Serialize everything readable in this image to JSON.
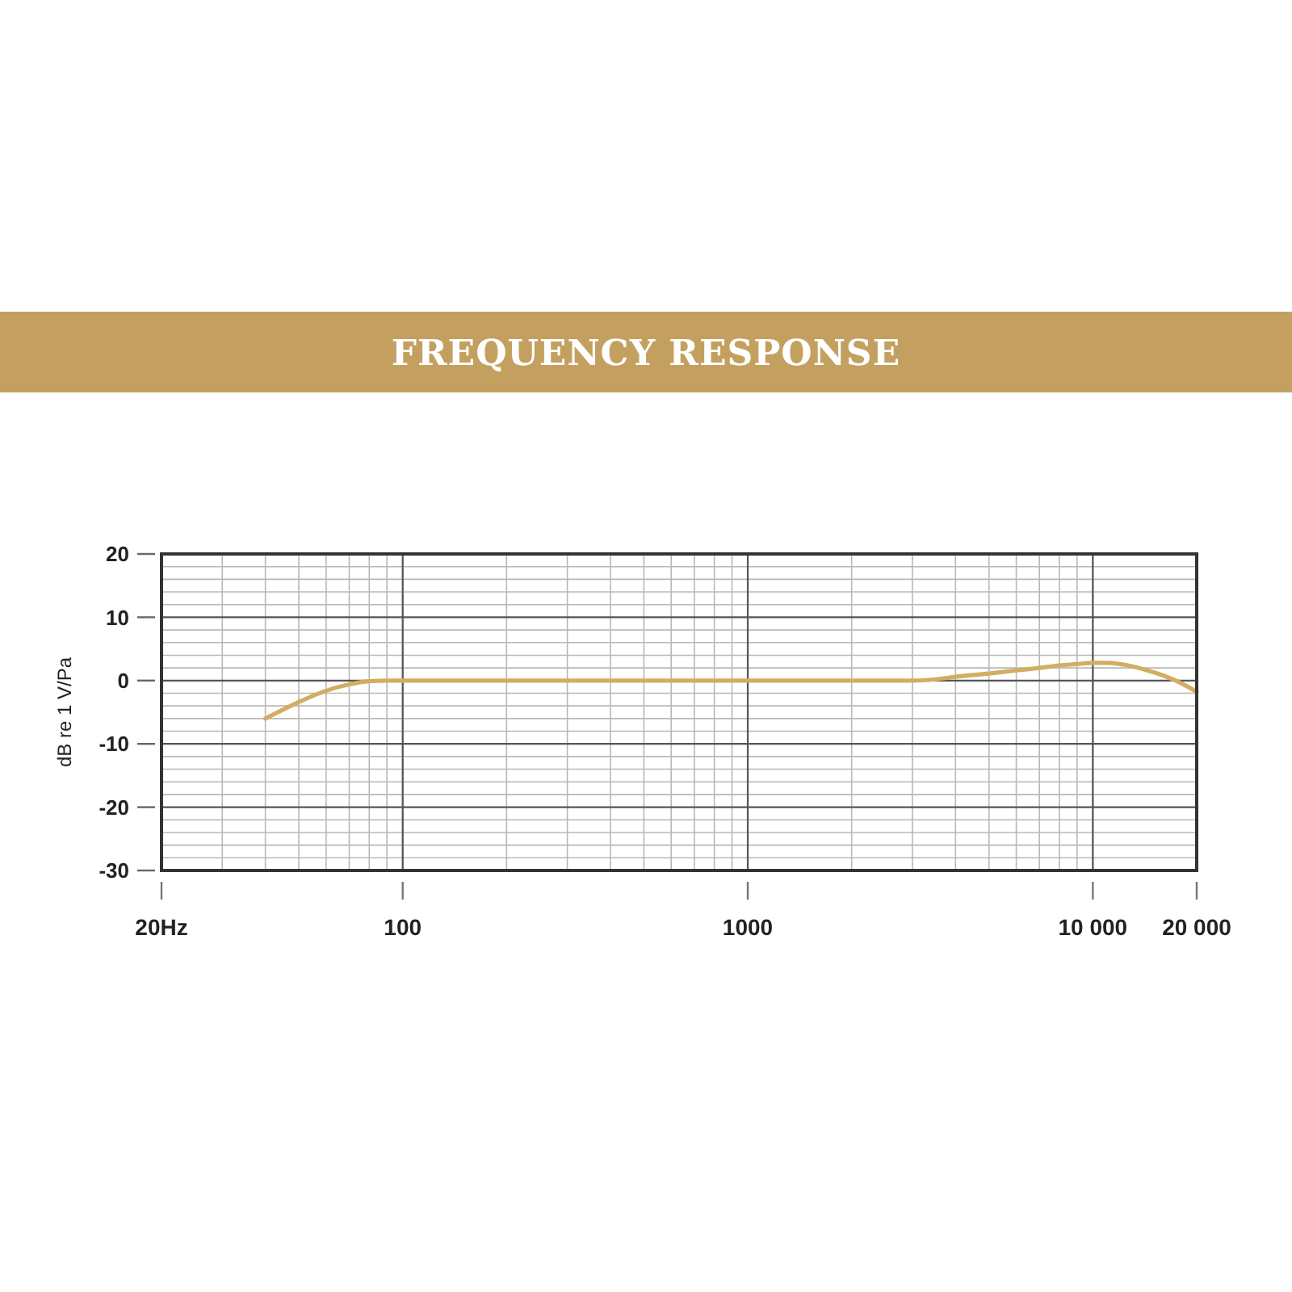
{
  "chart_data": {
    "type": "line",
    "title": "FREQUENCY RESPONSE",
    "ylabel": "dB re 1 V/Pa",
    "series": [
      {
        "color": "#d2ad62",
        "x": [
          40,
          45,
          50,
          55,
          60,
          70,
          80,
          90,
          100,
          200,
          500,
          1000,
          2000,
          3000,
          3500,
          4000,
          5000,
          6000,
          7000,
          8000,
          9000,
          10000,
          11000,
          12000,
          14000,
          16000,
          18000,
          20000
        ],
        "values": [
          -6,
          -4.6,
          -3.4,
          -2.4,
          -1.6,
          -0.6,
          -0.1,
          0,
          0,
          0,
          0,
          0,
          0,
          0,
          0.2,
          0.6,
          1.1,
          1.6,
          2,
          2.4,
          2.6,
          2.8,
          2.8,
          2.6,
          1.8,
          0.8,
          -0.4,
          -1.8
        ]
      }
    ],
    "log": "x",
    "xlim": [
      20,
      20000
    ],
    "ylim": [
      -30,
      20
    ],
    "xticks": [
      {
        "value": 20,
        "label": "20Hz"
      },
      100,
      1000,
      {
        "value": 10000,
        "label": "10 000"
      },
      {
        "value": 20000,
        "label": "20 000"
      }
    ],
    "yticks": [
      -30,
      -20,
      -10,
      0,
      10,
      20
    ],
    "grid": true
  }
}
